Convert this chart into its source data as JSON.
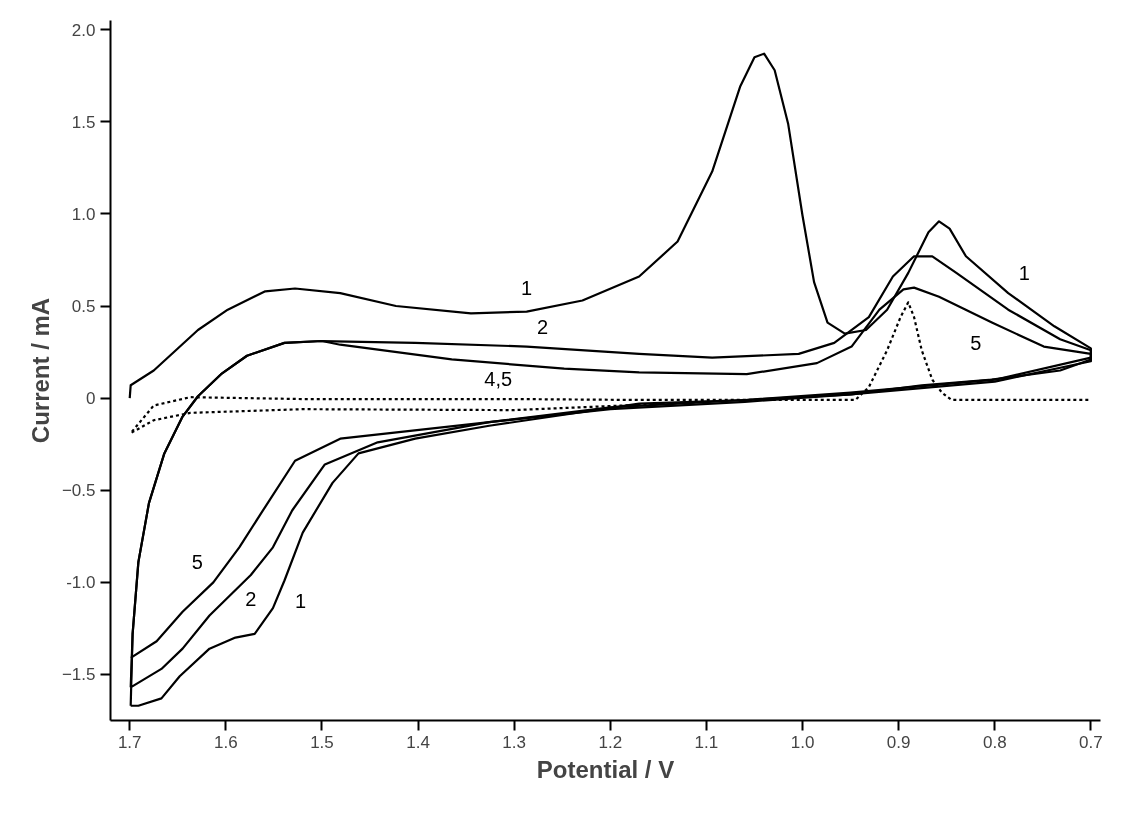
{
  "chart_data": {
    "type": "line",
    "xlabel": "Potential / V",
    "ylabel": "Current / mA",
    "xlim": [
      1.72,
      0.69
    ],
    "ylim": [
      -1.75,
      2.05
    ],
    "xticks": [
      1.7,
      1.6,
      1.5,
      1.4,
      1.3,
      1.2,
      1.1,
      {
        "value": 1.0,
        "label": "1.0"
      },
      0.9,
      0.8,
      0.7
    ],
    "yticks": [
      {
        "value": 2.0,
        "label": "2.0"
      },
      1.5,
      {
        "value": 1.0,
        "label": "1.0"
      },
      0.5,
      0,
      -0.5,
      {
        "value": -1.0,
        "label": "-1.0"
      },
      -1.5
    ],
    "grid": false,
    "marker": "none",
    "series": [
      {
        "color": "#000000",
        "line_style": "solid",
        "x": [
          1.7,
          1.699,
          1.675,
          1.629,
          1.598,
          1.559,
          1.528,
          1.481,
          1.423,
          1.345,
          1.287,
          1.229,
          1.17,
          1.13,
          1.094,
          1.065,
          1.05,
          1.04,
          1.029,
          1.015,
          1.0,
          0.988,
          0.974,
          0.956,
          0.934,
          0.912,
          0.89,
          0.869,
          0.858,
          0.847,
          0.83,
          0.786,
          0.738,
          0.7,
          0.7,
          0.732,
          0.803,
          0.876,
          0.949,
          1.058,
          1.17,
          1.326,
          1.403,
          1.462,
          1.489,
          1.52,
          1.539,
          1.551,
          1.57,
          1.59,
          1.617,
          1.648,
          1.667,
          1.691,
          1.699
        ],
        "values": [
          0,
          0.07,
          0.15,
          0.37,
          0.48,
          0.58,
          0.595,
          0.57,
          0.5,
          0.46,
          0.47,
          0.53,
          0.66,
          0.85,
          1.23,
          1.69,
          1.85,
          1.87,
          1.78,
          1.49,
          0.99,
          0.63,
          0.41,
          0.35,
          0.37,
          0.48,
          0.68,
          0.9,
          0.96,
          0.92,
          0.77,
          0.57,
          0.39,
          0.27,
          0.21,
          0.15,
          0.1,
          0.07,
          0.02,
          -0.01,
          -0.03,
          -0.15,
          -0.22,
          -0.3,
          -0.46,
          -0.73,
          -0.99,
          -1.14,
          -1.28,
          -1.3,
          -1.36,
          -1.51,
          -1.63,
          -1.67,
          -1.67
        ]
      },
      {
        "color": "#000000",
        "line_style": "solid",
        "x": [
          1.699,
          1.697,
          1.691,
          1.68,
          1.664,
          1.645,
          1.629,
          1.605,
          1.578,
          1.539,
          1.5,
          1.403,
          1.287,
          1.17,
          1.094,
          1.004,
          0.967,
          0.931,
          0.906,
          0.884,
          0.865,
          0.84,
          0.786,
          0.732,
          0.7,
          0.7,
          0.8,
          0.95,
          1.06,
          1.2,
          1.326,
          1.442,
          1.497,
          1.531,
          1.551,
          1.574,
          1.617,
          1.645,
          1.667,
          1.699
        ],
        "values": [
          -1.67,
          -1.28,
          -0.89,
          -0.57,
          -0.3,
          -0.1,
          0.01,
          0.13,
          0.23,
          0.3,
          0.31,
          0.3,
          0.28,
          0.24,
          0.22,
          0.24,
          0.3,
          0.44,
          0.66,
          0.77,
          0.77,
          0.68,
          0.48,
          0.32,
          0.26,
          0.22,
          0.1,
          0.03,
          -0.01,
          -0.05,
          -0.13,
          -0.24,
          -0.36,
          -0.61,
          -0.81,
          -0.96,
          -1.18,
          -1.36,
          -1.47,
          -1.57
        ]
      },
      {
        "color": "#000000",
        "line_style": "solid",
        "x": [
          1.699,
          1.697,
          1.691,
          1.68,
          1.664,
          1.645,
          1.629,
          1.605,
          1.578,
          1.539,
          1.5,
          1.481,
          1.365,
          1.248,
          1.17,
          1.058,
          0.985,
          0.949,
          0.92,
          0.895,
          0.884,
          0.858,
          0.803,
          0.749,
          0.7,
          0.7,
          0.8,
          0.95,
          1.06,
          1.2,
          1.326,
          1.481,
          1.528,
          1.559,
          1.586,
          1.613,
          1.645,
          1.672,
          1.699
        ],
        "values": [
          -1.57,
          -1.28,
          -0.89,
          -0.57,
          -0.3,
          -0.1,
          0.01,
          0.13,
          0.23,
          0.3,
          0.31,
          0.29,
          0.21,
          0.16,
          0.14,
          0.13,
          0.19,
          0.28,
          0.48,
          0.59,
          0.6,
          0.55,
          0.41,
          0.28,
          0.24,
          0.2,
          0.09,
          0.02,
          -0.02,
          -0.06,
          -0.13,
          -0.22,
          -0.34,
          -0.59,
          -0.81,
          -1.0,
          -1.16,
          -1.32,
          -1.41
        ]
      },
      {
        "color": "#000000",
        "line_style": "dotted",
        "x": [
          1.1,
          1.209,
          1.3,
          1.52,
          1.637,
          1.675,
          1.699,
          1.675,
          1.637,
          1.52,
          1.3,
          1.17,
          0.945,
          0.931,
          0.912,
          0.898,
          0.89,
          0.884,
          0.876,
          0.865,
          0.855,
          0.845,
          0.7
        ],
        "values": [
          -0.02,
          -0.045,
          -0.065,
          -0.06,
          -0.08,
          -0.12,
          -0.19,
          -0.04,
          0.005,
          -0.005,
          -0.005,
          -0.01,
          -0.01,
          0.06,
          0.26,
          0.44,
          0.52,
          0.44,
          0.26,
          0.1,
          0.03,
          -0.01,
          -0.01
        ]
      }
    ],
    "annotations": [
      {
        "text": "1",
        "x": 1.287,
        "y": 0.47
      },
      {
        "text": "2",
        "x": 1.287,
        "y": 0.28
      },
      {
        "text": "4,5",
        "x": 1.3,
        "y": -0.005
      },
      {
        "text": "1",
        "x": 0.786,
        "y": 0.57
      },
      {
        "text": "5",
        "x": 0.803,
        "y": 0.41
      },
      {
        "text": "5",
        "x": 1.613,
        "y": -1.0
      },
      {
        "text": "2",
        "x": 1.574,
        "y": -0.96
      },
      {
        "text": "1",
        "x": 1.539,
        "y": -0.99
      }
    ]
  }
}
